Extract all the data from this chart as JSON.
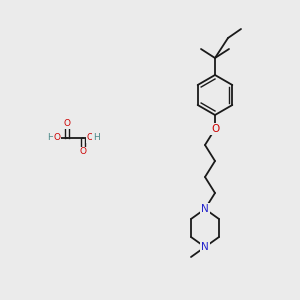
{
  "bg_color": "#ebebeb",
  "bond_color": "#1a1a1a",
  "N_color": "#2222cc",
  "O_color": "#cc0000",
  "H_color": "#4a8888",
  "font_size_atom": 6.5,
  "fig_bg": "#ebebeb",
  "fig_size": [
    3.0,
    3.0
  ],
  "dpi": 100,
  "xlim": [
    0,
    300
  ],
  "ylim": [
    0,
    300
  ]
}
